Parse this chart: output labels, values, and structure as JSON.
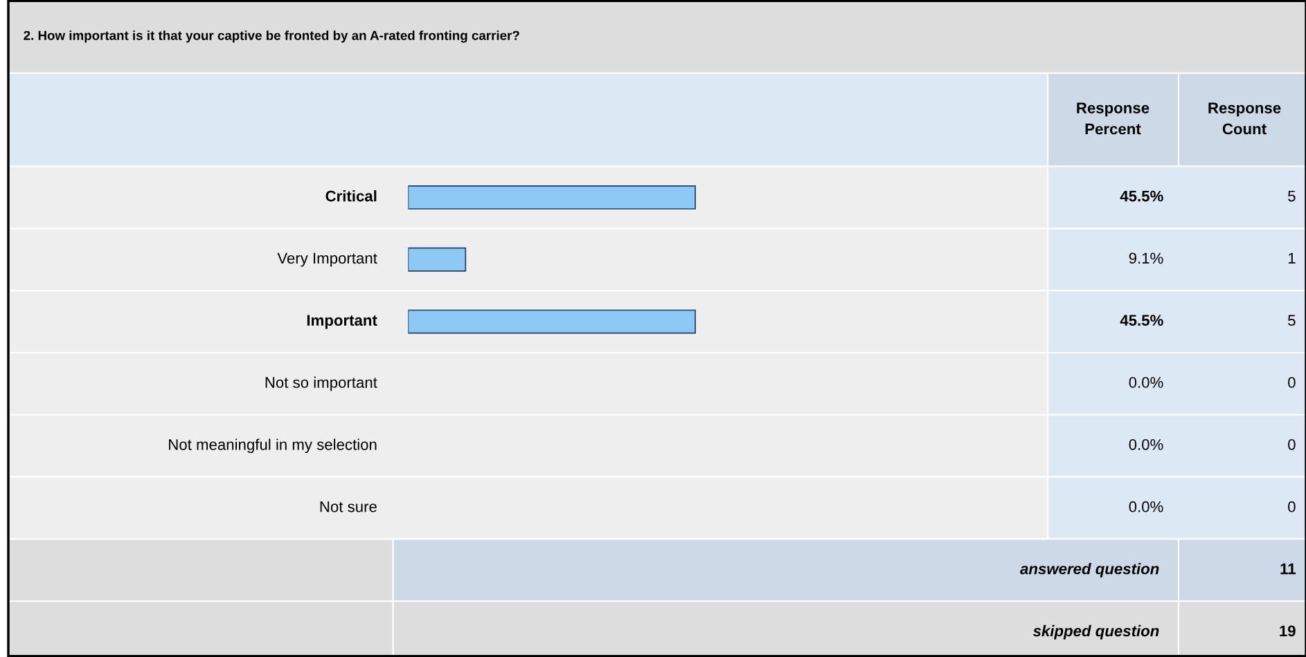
{
  "chart_data": {
    "type": "bar",
    "orientation": "horizontal",
    "title": "2. How important is it that your captive be fronted by an A-rated fronting carrier?",
    "categories": [
      "Critical",
      "Very Important",
      "Important",
      "Not so important",
      "Not meaningful in my selection",
      "Not sure"
    ],
    "values": [
      45.5,
      9.1,
      45.5,
      0.0,
      0.0,
      0.0
    ],
    "value_labels": [
      "45.5%",
      "9.1%",
      "45.5%",
      "0.0%",
      "0.0%",
      "0.0%"
    ],
    "color": "#8ec8f4",
    "tick_labels": false,
    "legend": false,
    "annotations": [
      "Response Percent",
      "Response Count",
      "answered question",
      "11",
      "skipped question",
      "19",
      "5",
      "1",
      "5",
      "0",
      "0",
      "0"
    ]
  }
}
